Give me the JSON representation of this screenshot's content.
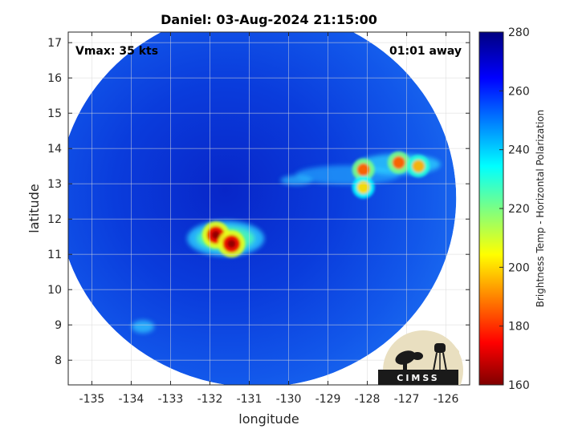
{
  "title": "Daniel: 03-Aug-2024 21:15:00",
  "annotations": {
    "vmax": "Vmax: 35 kts",
    "time_away": "01:01 away"
  },
  "axes": {
    "xlabel": "longitude",
    "ylabel": "latitude",
    "xlim": [
      -135.6,
      -125.4
    ],
    "ylim": [
      7.3,
      17.3
    ],
    "xticks": [
      -135,
      -134,
      -133,
      -132,
      -131,
      -130,
      -129,
      -128,
      -127,
      -126
    ],
    "yticks": [
      8,
      9,
      10,
      11,
      12,
      13,
      14,
      15,
      16,
      17
    ],
    "grid": true
  },
  "colorbar": {
    "label": "Brightness Temp - Horizontal Polarization",
    "range": [
      160,
      280
    ],
    "ticks": [
      160,
      180,
      200,
      220,
      240,
      260,
      280
    ],
    "colormap": "jet",
    "colors": [
      "#800000",
      "#ff0000",
      "#ffff00",
      "#00ffff",
      "#0000ff",
      "#000080"
    ]
  },
  "swath": {
    "background_tb": 262,
    "band_center_lat": 13.4,
    "band_lon_range": [
      -130.5,
      -125.8
    ]
  },
  "features": [
    {
      "name": "core-a",
      "lon": -131.85,
      "lat": 11.55,
      "tb": 172
    },
    {
      "name": "core-b",
      "lon": -131.45,
      "lat": 11.3,
      "tb": 172
    },
    {
      "name": "band-a",
      "lon": -128.1,
      "lat": 13.4,
      "tb": 185
    },
    {
      "name": "band-b",
      "lon": -127.2,
      "lat": 13.6,
      "tb": 185
    },
    {
      "name": "band-c",
      "lon": -128.1,
      "lat": 12.9,
      "tb": 200
    },
    {
      "name": "band-d",
      "lon": -126.7,
      "lat": 13.5,
      "tb": 195
    }
  ],
  "logo": {
    "text": "CIMSS"
  }
}
